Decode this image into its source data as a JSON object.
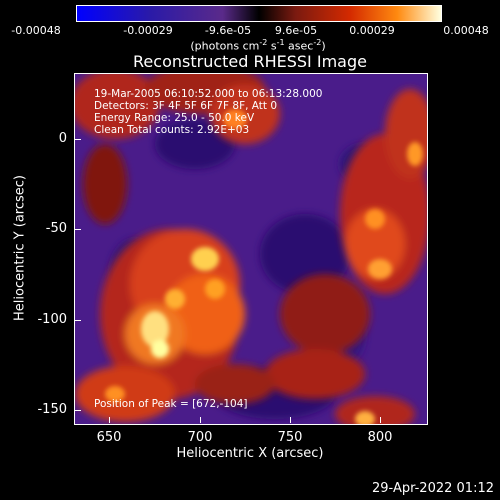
{
  "colorbar": {
    "ticks": [
      "-0.00048",
      "-0.00029",
      "-9.6e-05",
      "9.6e-05",
      "0.00029",
      "0.00048"
    ],
    "unit_prefix": "(photons cm",
    "unit_exp1": "-2",
    "unit_mid": " s",
    "unit_exp2": "-1",
    "unit_mid2": " asec",
    "unit_exp3": "-2",
    "unit_suffix": ")"
  },
  "plot": {
    "title": "Reconstructed RHESSI Image",
    "xlabel": "Heliocentric X (arcsec)",
    "ylabel": "Heliocentric Y (arcsec)",
    "xticks": [
      "650",
      "700",
      "750",
      "800"
    ],
    "yticks": [
      "0",
      "-50",
      "-100",
      "-150"
    ],
    "xlim": [
      630,
      825
    ],
    "ylim": [
      -157,
      37
    ],
    "annotation": {
      "line1": "19-Mar-2005 06:10:52.000 to 06:13:28.000",
      "line2": "Detectors: 3F 4F 5F 6F 7F 8F, Att 0",
      "line3": "Energy Range: 25.0 - 50.0 keV",
      "line4": "Clean     Total counts: 2.92E+03",
      "peak": "Position of Peak = [672,-104]"
    }
  },
  "footer": {
    "date": "29-Apr-2022 01:12"
  }
}
